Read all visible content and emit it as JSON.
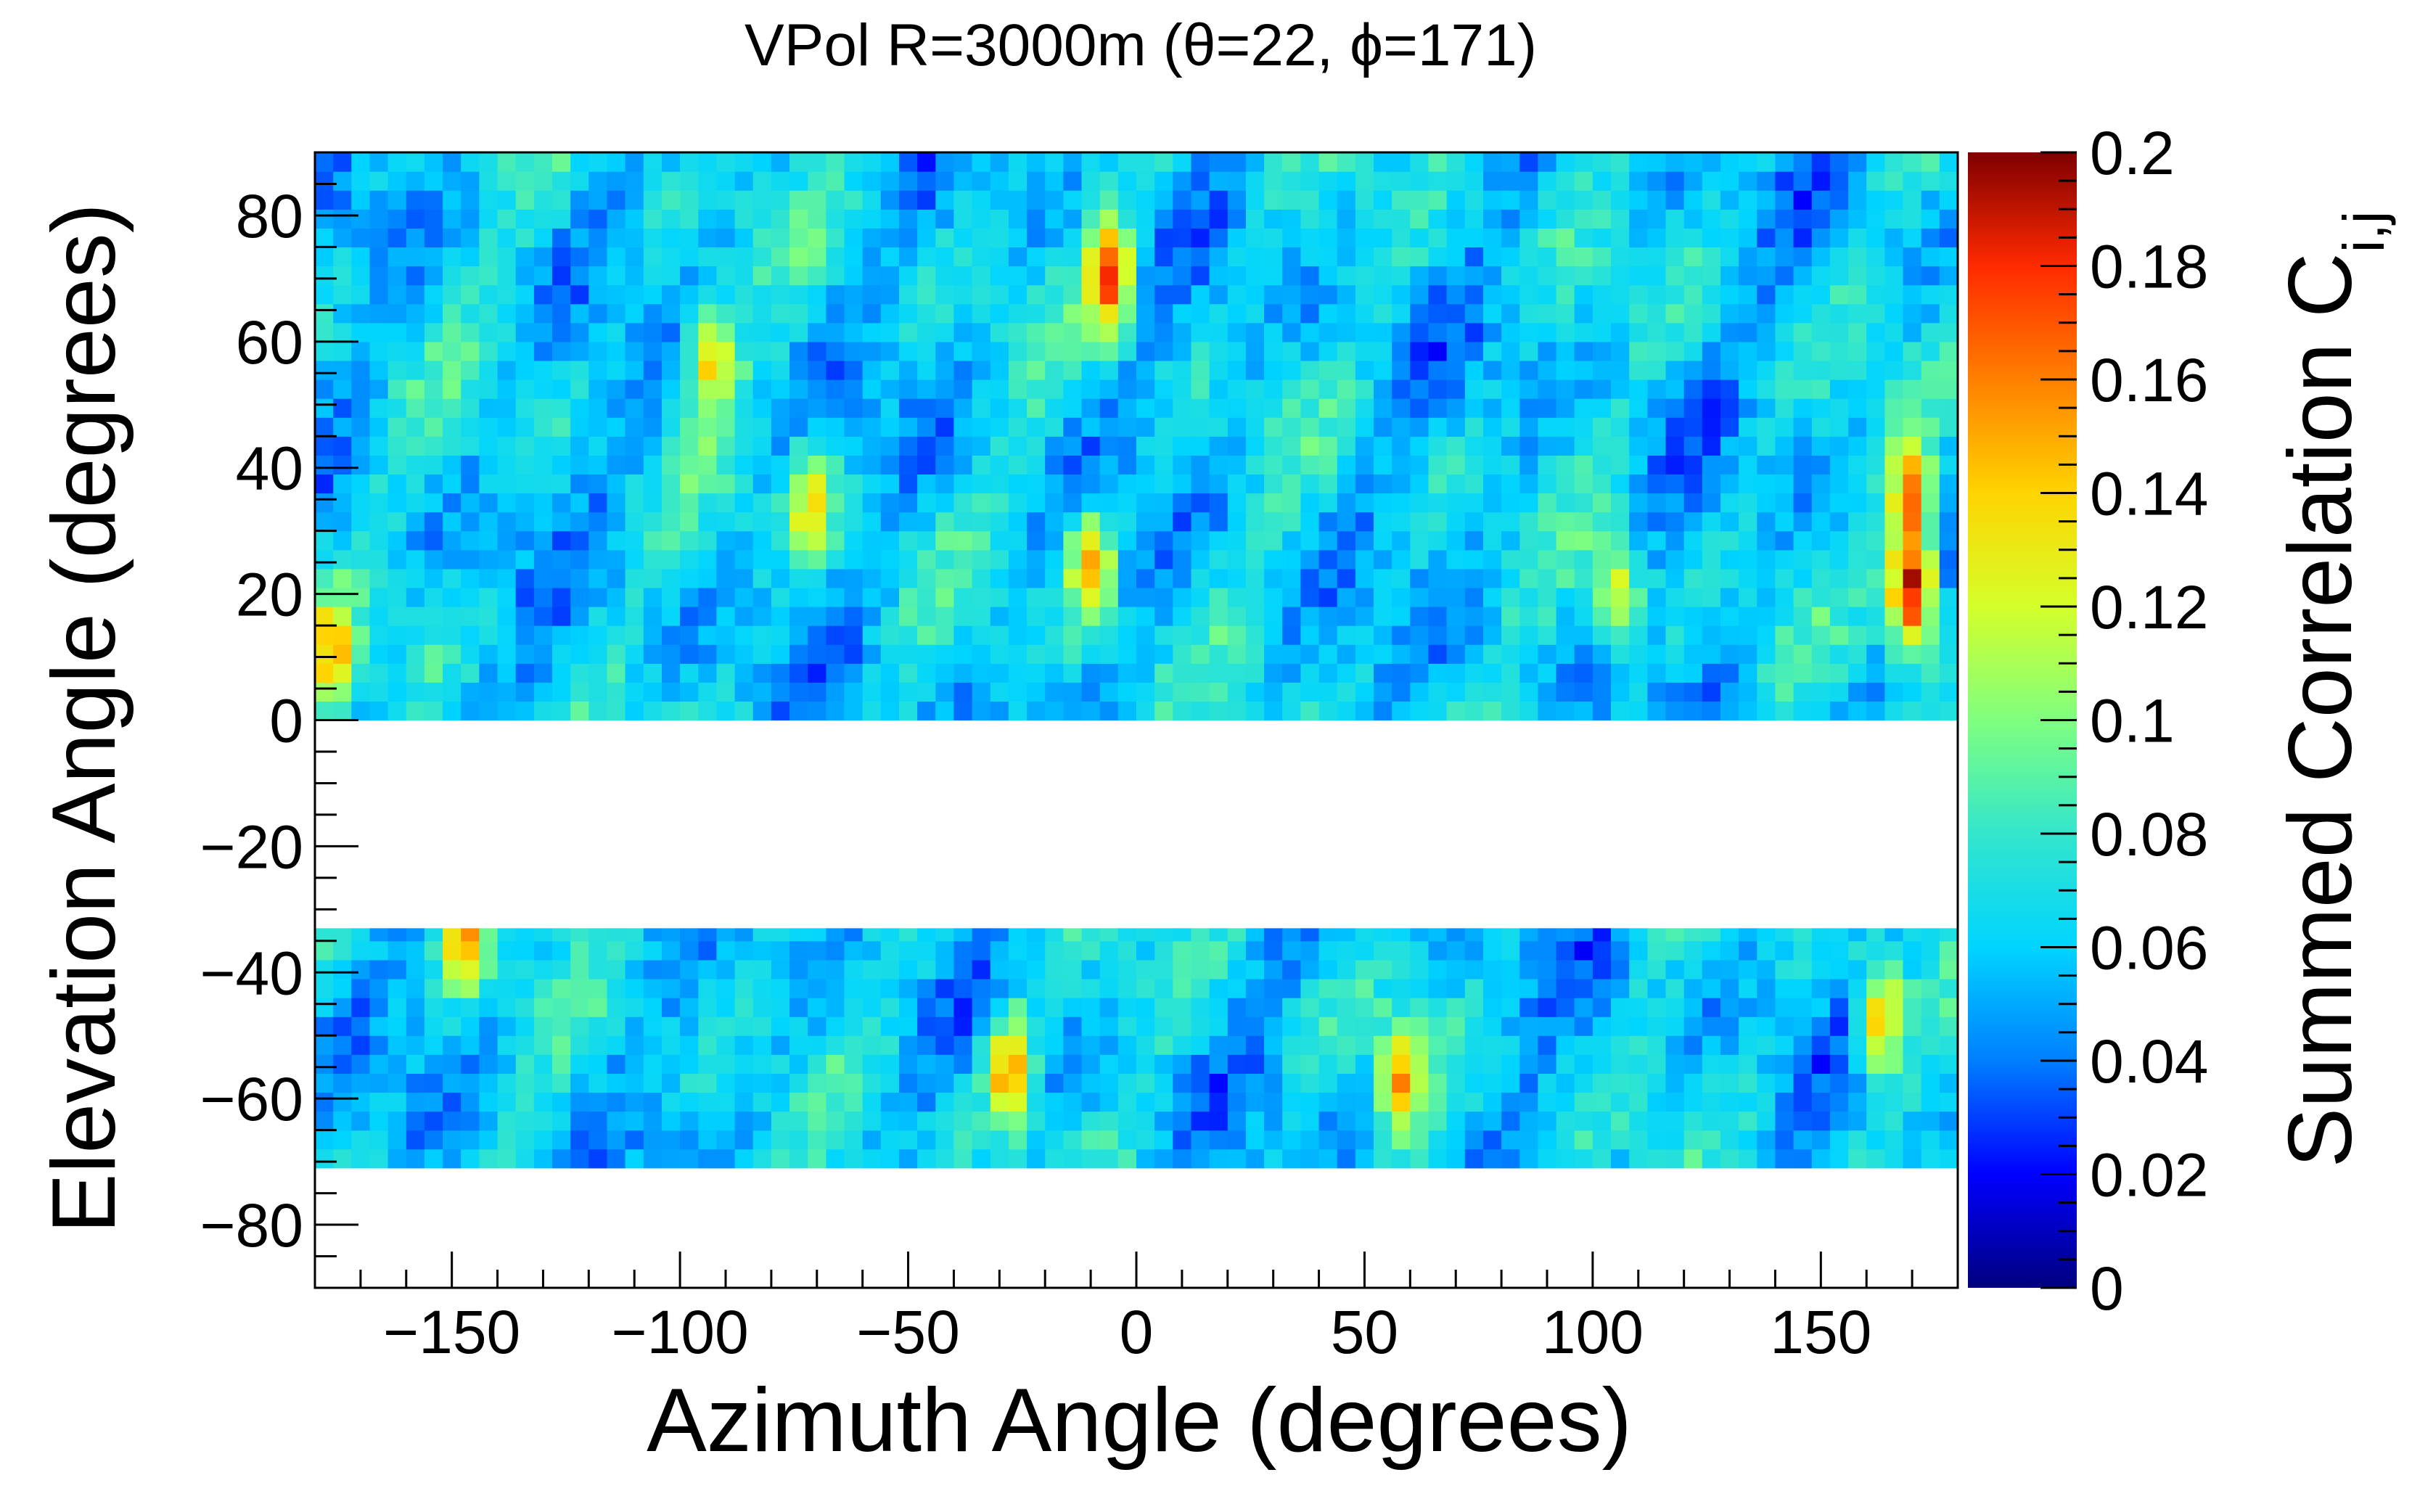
{
  "chart_data": {
    "type": "heatmap",
    "title": "VPol R=3000m (θ=22, ϕ=171)",
    "xlabel": "Azimuth Angle (degrees)",
    "ylabel": "Elevation Angle (degrees)",
    "xlim": [
      -180,
      180
    ],
    "ylim": [
      -90,
      90
    ],
    "x_ticks": [
      -150,
      -100,
      -50,
      0,
      50,
      100,
      150
    ],
    "x_tick_labels": [
      "−150",
      "−100",
      "−50",
      "0",
      "50",
      "100",
      "150"
    ],
    "y_ticks": [
      80,
      60,
      40,
      20,
      0,
      -20,
      -40,
      -60,
      -80
    ],
    "y_tick_labels": [
      "80",
      "60",
      "40",
      "20",
      "0",
      "−20",
      "−40",
      "−60",
      "−80"
    ],
    "colorbar": {
      "label": "Summed Correlation C",
      "label_subscript": "i,j",
      "range": [
        0,
        0.2
      ],
      "ticks": [
        0.2,
        0.18,
        0.16,
        0.14,
        0.12,
        0.1,
        0.08,
        0.06,
        0.04,
        0.02,
        0
      ],
      "tick_labels": [
        "0.2",
        "0.18",
        "0.16",
        "0.14",
        "0.12",
        "0.1",
        "0.08",
        "0.06",
        "0.04",
        "0.02",
        "0"
      ],
      "colormap": [
        "#00007f",
        "#0000ff",
        "#007fff",
        "#00d4ff",
        "#33e6cc",
        "#7fff7f",
        "#d4ff2a",
        "#ffd400",
        "#ff7f00",
        "#ff2a00",
        "#7f0000"
      ]
    },
    "filled_regions": [
      {
        "elevation": [
          0,
          90
        ],
        "azimuth": [
          -180,
          180
        ]
      },
      {
        "elevation": [
          -71,
          -33
        ],
        "azimuth": [
          -180,
          180
        ]
      }
    ],
    "empty_regions": [
      {
        "elevation": [
          -33,
          0
        ],
        "azimuth": [
          -180,
          180
        ]
      },
      {
        "elevation": [
          -90,
          -71
        ],
        "azimuth": [
          -180,
          180
        ]
      }
    ],
    "background_level": 0.06,
    "hotspots": [
      {
        "azimuth": 170,
        "elevation": 20,
        "value": 0.2
      },
      {
        "azimuth": 170,
        "elevation": 35,
        "value": 0.16
      },
      {
        "azimuth": -6,
        "elevation": 70,
        "value": 0.17
      },
      {
        "azimuth": -93,
        "elevation": 58,
        "value": 0.14
      },
      {
        "azimuth": -10,
        "elevation": 25,
        "value": 0.14
      },
      {
        "azimuth": -176,
        "elevation": 10,
        "value": 0.14
      },
      {
        "azimuth": -71,
        "elevation": 35,
        "value": 0.13
      },
      {
        "azimuth": 105,
        "elevation": 20,
        "value": 0.13
      },
      {
        "azimuth": 163,
        "elevation": -47,
        "value": 0.15
      },
      {
        "azimuth": -28,
        "elevation": -55,
        "value": 0.15
      },
      {
        "azimuth": 58,
        "elevation": -57,
        "value": 0.14
      },
      {
        "azimuth": -147,
        "elevation": -34,
        "value": 0.14
      }
    ]
  }
}
